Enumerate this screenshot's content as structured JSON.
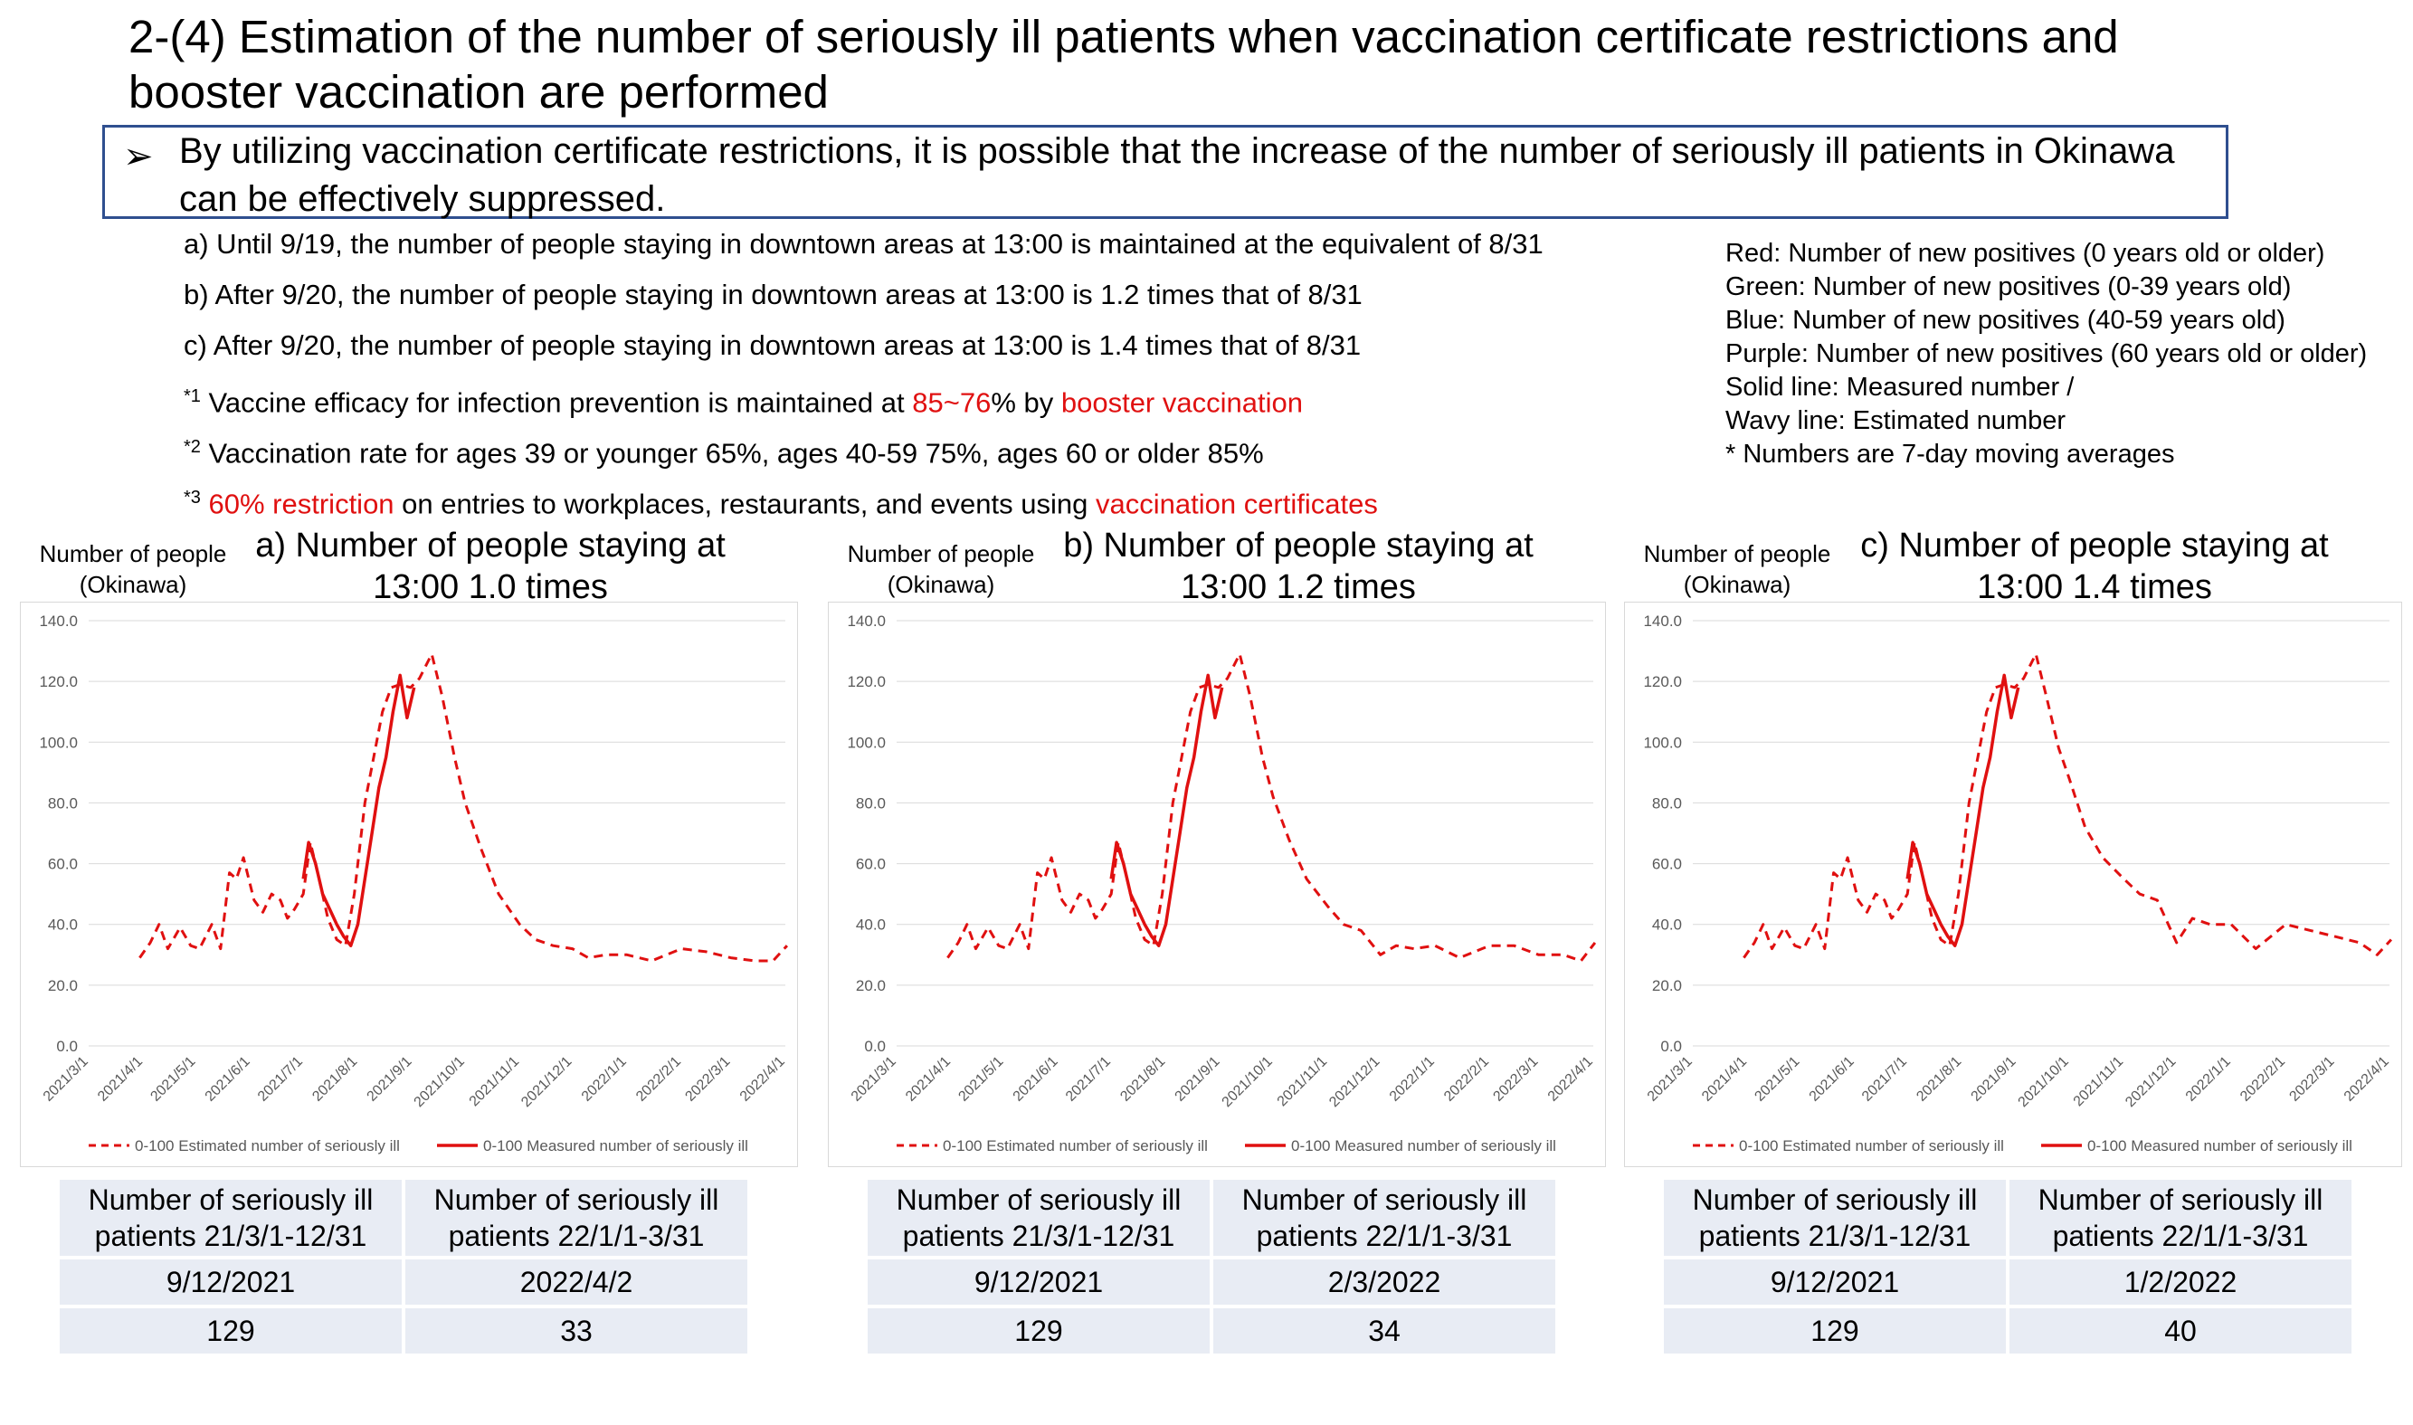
{
  "title": "2-(4) Estimation of the number of seriously ill patients when vaccination certificate restrictions and booster vaccination are performed",
  "key_message": {
    "bullet": "➢",
    "text": "By utilizing vaccination certificate restrictions, it is possible that the increase of the number of seriously ill patients in Okinawa can be effectively suppressed."
  },
  "conditions": {
    "a": "a) Until 9/19, the number of people staying in downtown areas at 13:00 is maintained at the equivalent of 8/31",
    "b": "b) After 9/20, the number of people staying in downtown areas at 13:00 is 1.2 times that of 8/31",
    "c": "c) After 9/20, the number of people staying in downtown areas at 13:00 is 1.4 times that of 8/31",
    "n1": {
      "mark": "*1",
      "pre": " Vaccine efficacy for infection prevention is maintained at ",
      "red1": "85~76",
      "mid": "% by ",
      "red2": "booster vaccination"
    },
    "n2": {
      "mark": "*2",
      "text": " Vaccination rate for ages 39 or younger 65%, ages 40-59 75%, ages 60 or older 85%"
    },
    "n3": {
      "mark": "*3",
      "red1": " 60% restriction",
      "mid": " on entries to workplaces, restaurants, and events using ",
      "red2": "vaccination certificates"
    }
  },
  "legend_lines": [
    "Red: Number of new positives (0 years old or older)",
    "Green: Number of new positives (0-39 years old)",
    "Blue: Number of new positives (40-59 years old)",
    "Purple: Number of new positives (60 years old or older)",
    "Solid line: Measured number /",
    "Wavy line: Estimated number",
    "* Numbers are 7-day moving averages"
  ],
  "colors": {
    "series": "#e01010",
    "box_border": "#2f4f8f",
    "table_bg": "#e8ecf4",
    "grid": "#d9d9d9"
  },
  "table_headers": [
    "Number of seriously ill patients 21/3/1-12/31",
    "Number of seriously ill patients 22/1/1-3/31"
  ],
  "panels": [
    {
      "ylabel_line1": "Number of people",
      "ylabel_line2": "(Okinawa)",
      "title_line1": "a) Number of people staying at",
      "title_line2": "13:00 1.0 times",
      "peak_date_1": "9/12/2021",
      "peak_date_2": "2022/4/2",
      "peak_value_1": "129",
      "peak_value_2": "33"
    },
    {
      "ylabel_line1": "Number of people",
      "ylabel_line2": "(Okinawa)",
      "title_line1": "b) Number of people staying at",
      "title_line2": "13:00 1.2 times",
      "peak_date_1": "9/12/2021",
      "peak_date_2": "2/3/2022",
      "peak_value_1": "129",
      "peak_value_2": "34"
    },
    {
      "ylabel_line1": "Number of people",
      "ylabel_line2": "(Okinawa)",
      "title_line1": "c) Number of people staying at",
      "title_line2": "13:00 1.4 times",
      "peak_date_1": "9/12/2021",
      "peak_date_2": "1/2/2022",
      "peak_value_1": "129",
      "peak_value_2": "40"
    }
  ],
  "chart_data": [
    {
      "type": "line",
      "title": "a) Number of people staying at 13:00 1.0 times",
      "ylabel": "Number of people (Okinawa)",
      "ylim": [
        0,
        140
      ],
      "yticks": [
        "0.0",
        "20.0",
        "40.0",
        "60.0",
        "80.0",
        "100.0",
        "120.0",
        "140.0"
      ],
      "x_ticks": [
        "2021/3/1",
        "2021/4/1",
        "2021/5/1",
        "2021/6/1",
        "2021/7/1",
        "2021/8/1",
        "2021/9/1",
        "2021/10/1",
        "2021/11/1",
        "2021/12/1",
        "2022/1/1",
        "2022/2/1",
        "2022/3/1",
        "2022/4/1"
      ],
      "grid": true,
      "legend_position": "bottom",
      "series": [
        {
          "name": "0-100 Estimated number of seriously ill",
          "style": "dashed",
          "x": [
            "2021/3/30",
            "2021/4/5",
            "2021/4/10",
            "2021/4/15",
            "2021/4/22",
            "2021/4/28",
            "2021/5/3",
            "2021/5/10",
            "2021/5/15",
            "2021/5/20",
            "2021/5/24",
            "2021/5/28",
            "2021/6/3",
            "2021/6/8",
            "2021/6/13",
            "2021/6/18",
            "2021/6/22",
            "2021/6/26",
            "2021/7/1",
            "2021/7/5",
            "2021/7/10",
            "2021/7/15",
            "2021/7/20",
            "2021/7/25",
            "2021/7/30",
            "2021/8/5",
            "2021/8/10",
            "2021/8/15",
            "2021/8/20",
            "2021/8/25",
            "2021/8/31",
            "2021/9/5",
            "2021/9/12",
            "2021/9/18",
            "2021/9/25",
            "2021/10/1",
            "2021/10/10",
            "2021/10/20",
            "2021/11/1",
            "2021/11/10",
            "2021/11/20",
            "2021/12/1",
            "2021/12/10",
            "2021/12/20",
            "2022/1/1",
            "2022/1/15",
            "2022/2/1",
            "2022/2/15",
            "2022/3/1",
            "2022/3/15",
            "2022/3/25",
            "2022/4/2"
          ],
          "y": [
            29,
            34,
            40,
            32,
            39,
            33,
            32,
            40,
            32,
            57,
            55,
            62,
            48,
            44,
            50,
            48,
            42,
            45,
            50,
            67,
            55,
            42,
            35,
            33,
            50,
            80,
            95,
            110,
            118,
            119,
            118,
            121,
            129,
            115,
            95,
            80,
            65,
            50,
            40,
            35,
            33,
            32,
            29,
            30,
            30,
            28,
            32,
            31,
            29,
            28,
            28,
            33
          ]
        },
        {
          "name": "0-100 Measured number of seriously ill",
          "style": "solid",
          "x": [
            "2021/7/1",
            "2021/7/4",
            "2021/7/8",
            "2021/7/12",
            "2021/7/16",
            "2021/7/20",
            "2021/7/24",
            "2021/7/28",
            "2021/8/1",
            "2021/8/5",
            "2021/8/9",
            "2021/8/13",
            "2021/8/17",
            "2021/8/21",
            "2021/8/25",
            "2021/8/29",
            "2021/9/2"
          ],
          "y": [
            55,
            67,
            60,
            50,
            45,
            40,
            36,
            33,
            40,
            55,
            70,
            85,
            95,
            110,
            122,
            108,
            118
          ]
        }
      ]
    },
    {
      "type": "line",
      "title": "b) Number of people staying at 13:00 1.2 times",
      "ylabel": "Number of people (Okinawa)",
      "ylim": [
        0,
        140
      ],
      "yticks": [
        "0.0",
        "20.0",
        "40.0",
        "60.0",
        "80.0",
        "100.0",
        "120.0",
        "140.0"
      ],
      "x_ticks": [
        "2021/3/1",
        "2021/4/1",
        "2021/5/1",
        "2021/6/1",
        "2021/7/1",
        "2021/8/1",
        "2021/9/1",
        "2021/10/1",
        "2021/11/1",
        "2021/12/1",
        "2022/1/1",
        "2022/2/1",
        "2022/3/1",
        "2022/4/1"
      ],
      "grid": true,
      "legend_position": "bottom",
      "series": [
        {
          "name": "0-100 Estimated number of seriously ill",
          "style": "dashed",
          "x": [
            "2021/3/30",
            "2021/4/5",
            "2021/4/10",
            "2021/4/15",
            "2021/4/22",
            "2021/4/28",
            "2021/5/3",
            "2021/5/10",
            "2021/5/15",
            "2021/5/20",
            "2021/5/24",
            "2021/5/28",
            "2021/6/3",
            "2021/6/8",
            "2021/6/13",
            "2021/6/18",
            "2021/6/22",
            "2021/6/26",
            "2021/7/1",
            "2021/7/5",
            "2021/7/10",
            "2021/7/15",
            "2021/7/20",
            "2021/7/25",
            "2021/7/30",
            "2021/8/5",
            "2021/8/10",
            "2021/8/15",
            "2021/8/20",
            "2021/8/25",
            "2021/8/31",
            "2021/9/5",
            "2021/9/12",
            "2021/9/18",
            "2021/9/25",
            "2021/10/1",
            "2021/10/10",
            "2021/10/20",
            "2021/11/1",
            "2021/11/10",
            "2021/11/20",
            "2021/12/1",
            "2021/12/10",
            "2021/12/20",
            "2022/1/1",
            "2022/1/15",
            "2022/2/1",
            "2022/2/15",
            "2022/3/1",
            "2022/3/15",
            "2022/3/25",
            "2022/4/2"
          ],
          "y": [
            29,
            34,
            40,
            32,
            39,
            33,
            32,
            40,
            32,
            57,
            55,
            62,
            48,
            44,
            50,
            48,
            42,
            45,
            50,
            67,
            55,
            42,
            35,
            33,
            50,
            80,
            95,
            110,
            118,
            119,
            118,
            121,
            129,
            115,
            95,
            82,
            68,
            55,
            46,
            40,
            38,
            30,
            33,
            32,
            33,
            29,
            33,
            33,
            30,
            30,
            28,
            34
          ]
        },
        {
          "name": "0-100 Measured number of seriously ill",
          "style": "solid",
          "x": [
            "2021/7/1",
            "2021/7/4",
            "2021/7/8",
            "2021/7/12",
            "2021/7/16",
            "2021/7/20",
            "2021/7/24",
            "2021/7/28",
            "2021/8/1",
            "2021/8/5",
            "2021/8/9",
            "2021/8/13",
            "2021/8/17",
            "2021/8/21",
            "2021/8/25",
            "2021/8/29",
            "2021/9/2"
          ],
          "y": [
            55,
            67,
            60,
            50,
            45,
            40,
            36,
            33,
            40,
            55,
            70,
            85,
            95,
            110,
            122,
            108,
            118
          ]
        }
      ]
    },
    {
      "type": "line",
      "title": "c) Number of people staying at 13:00 1.4 times",
      "ylabel": "Number of people (Okinawa)",
      "ylim": [
        0,
        140
      ],
      "yticks": [
        "0.0",
        "20.0",
        "40.0",
        "60.0",
        "80.0",
        "100.0",
        "120.0",
        "140.0"
      ],
      "x_ticks": [
        "2021/3/1",
        "2021/4/1",
        "2021/5/1",
        "2021/6/1",
        "2021/7/1",
        "2021/8/1",
        "2021/9/1",
        "2021/10/1",
        "2021/11/1",
        "2021/12/1",
        "2022/1/1",
        "2022/2/1",
        "2022/3/1",
        "2022/4/1"
      ],
      "grid": true,
      "legend_position": "bottom",
      "series": [
        {
          "name": "0-100 Estimated number of seriously ill",
          "style": "dashed",
          "x": [
            "2021/3/30",
            "2021/4/5",
            "2021/4/10",
            "2021/4/15",
            "2021/4/22",
            "2021/4/28",
            "2021/5/3",
            "2021/5/10",
            "2021/5/15",
            "2021/5/20",
            "2021/5/24",
            "2021/5/28",
            "2021/6/3",
            "2021/6/8",
            "2021/6/13",
            "2021/6/18",
            "2021/6/22",
            "2021/6/26",
            "2021/7/1",
            "2021/7/5",
            "2021/7/10",
            "2021/7/15",
            "2021/7/20",
            "2021/7/25",
            "2021/7/30",
            "2021/8/5",
            "2021/8/10",
            "2021/8/15",
            "2021/8/20",
            "2021/8/25",
            "2021/8/31",
            "2021/9/5",
            "2021/9/12",
            "2021/9/18",
            "2021/9/25",
            "2021/10/1",
            "2021/10/10",
            "2021/10/20",
            "2021/11/1",
            "2021/11/10",
            "2021/11/20",
            "2021/12/1",
            "2021/12/10",
            "2021/12/20",
            "2022/1/1",
            "2022/1/15",
            "2022/2/1",
            "2022/2/15",
            "2022/3/1",
            "2022/3/15",
            "2022/3/25",
            "2022/4/2"
          ],
          "y": [
            29,
            34,
            40,
            32,
            39,
            33,
            32,
            40,
            32,
            57,
            55,
            62,
            48,
            44,
            50,
            48,
            42,
            45,
            50,
            67,
            55,
            42,
            35,
            33,
            50,
            80,
            95,
            110,
            118,
            119,
            118,
            121,
            129,
            115,
            98,
            88,
            72,
            62,
            55,
            50,
            48,
            34,
            42,
            40,
            40,
            32,
            40,
            38,
            36,
            34,
            30,
            35
          ]
        },
        {
          "name": "0-100 Measured number of seriously ill",
          "style": "solid",
          "x": [
            "2021/7/1",
            "2021/7/4",
            "2021/7/8",
            "2021/7/12",
            "2021/7/16",
            "2021/7/20",
            "2021/7/24",
            "2021/7/28",
            "2021/8/1",
            "2021/8/5",
            "2021/8/9",
            "2021/8/13",
            "2021/8/17",
            "2021/8/21",
            "2021/8/25",
            "2021/8/29",
            "2021/9/2"
          ],
          "y": [
            55,
            67,
            60,
            50,
            45,
            40,
            36,
            33,
            40,
            55,
            70,
            85,
            95,
            110,
            122,
            108,
            118
          ]
        }
      ]
    }
  ]
}
